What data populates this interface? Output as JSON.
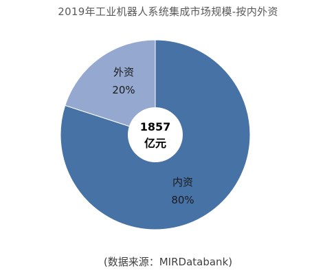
{
  "source_note": "(数据来源：MIRDatabank)",
  "colors": {
    "domestic": "#4672A6",
    "foreign": "#94A8D0",
    "center": "#FFFFFF",
    "label_text": "#1A1A1A",
    "center_text": "#000000"
  },
  "chart_data": {
    "type": "pie",
    "title": "2019年工业机器人系统集成市场规模-按内外资",
    "center_label": [
      "1857",
      "亿元"
    ],
    "total": 1857,
    "total_unit": "亿元",
    "slices": [
      {
        "name": "内资",
        "value": 80,
        "label": "80%"
      },
      {
        "name": "外资",
        "value": 20,
        "label": "20%"
      }
    ],
    "start_angle": "12 o'clock",
    "direction": "clockwise",
    "donut": true
  }
}
